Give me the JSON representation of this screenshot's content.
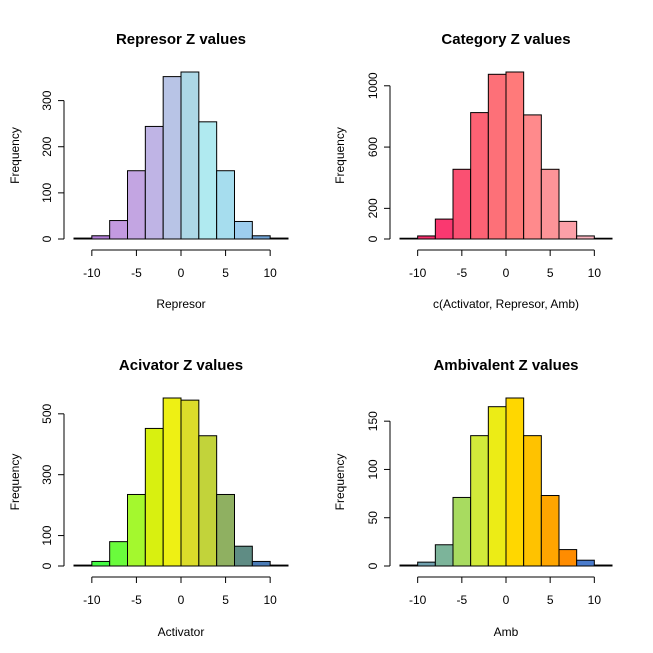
{
  "chart_data": [
    {
      "type": "bar",
      "title": "Represor Z values",
      "xlabel": "Represor",
      "ylabel": "Frequency",
      "bin_edges": [
        -12,
        -10,
        -8,
        -6,
        -4,
        -2,
        0,
        2,
        4,
        6,
        8,
        10,
        12
      ],
      "values": [
        2,
        7,
        40,
        148,
        244,
        352,
        362,
        254,
        148,
        38,
        7,
        2
      ],
      "bar_colors": [
        "#9932CC",
        "#B37FD9",
        "#C39AE0",
        "#C3A5E2",
        "#BFB4E5",
        "#B8C4E6",
        "#ADD8E6",
        "#B0EAF0",
        "#A6DDEE",
        "#9DCDEE",
        "#6FA3D6",
        "#5A8DC6"
      ],
      "xticks": [
        -10,
        -5,
        0,
        5,
        10
      ],
      "yticks": [
        0,
        100,
        200,
        300
      ],
      "xlim": [
        -12,
        12
      ],
      "ylim": [
        0,
        362
      ]
    },
    {
      "type": "bar",
      "title": "Category Z values",
      "xlabel": "c(Activator, Represor, Amb)",
      "ylabel": "Frequency",
      "bin_edges": [
        -12,
        -10,
        -8,
        -6,
        -4,
        -2,
        0,
        2,
        4,
        6,
        8,
        10,
        12
      ],
      "values": [
        5,
        20,
        130,
        455,
        825,
        1075,
        1090,
        810,
        455,
        115,
        20,
        5
      ],
      "bar_colors": [
        "#F0246E",
        "#F72E6C",
        "#FA3870",
        "#FA5072",
        "#FC6274",
        "#FD7078",
        "#FF7A7A",
        "#FF8A8C",
        "#FD9498",
        "#FCA0A8",
        "#FCB4C0",
        "#FDC4D0"
      ],
      "xticks": [
        -10,
        -5,
        0,
        5,
        10
      ],
      "yticks": [
        0,
        200,
        600,
        1000
      ],
      "xlim": [
        -12,
        12
      ],
      "ylim": [
        0,
        1090
      ]
    },
    {
      "type": "bar",
      "title": "Acivator Z values",
      "xlabel": "Activator",
      "ylabel": "Frequency",
      "bin_edges": [
        -12,
        -10,
        -8,
        -6,
        -4,
        -2,
        0,
        2,
        4,
        6,
        8,
        10,
        12
      ],
      "values": [
        3,
        15,
        80,
        235,
        452,
        552,
        545,
        428,
        235,
        65,
        15,
        3
      ],
      "bar_colors": [
        "#2FF82F",
        "#43FB43",
        "#6AFC3C",
        "#A4F82E",
        "#D8F010",
        "#EEF014",
        "#DCDC2A",
        "#C2D33A",
        "#8FB061",
        "#5F8C84",
        "#4A7BB6",
        "#3F6EA8"
      ],
      "xticks": [
        -10,
        -5,
        0,
        5,
        10
      ],
      "yticks": [
        0,
        100,
        300,
        500
      ],
      "xlim": [
        -12,
        12
      ],
      "ylim": [
        0,
        552
      ]
    },
    {
      "type": "bar",
      "title": "Ambivalent Z values",
      "xlabel": "Amb",
      "ylabel": "Frequency",
      "bin_edges": [
        -12,
        -10,
        -8,
        -6,
        -4,
        -2,
        0,
        2,
        4,
        6,
        8,
        10,
        12
      ],
      "values": [
        1,
        4,
        22,
        71,
        135,
        165,
        174,
        135,
        73,
        17,
        6,
        1
      ],
      "bar_colors": [
        "#5A8DB2",
        "#6FA0AE",
        "#7CB49A",
        "#A8DB60",
        "#D2EA3A",
        "#ECEC16",
        "#FFD700",
        "#FFC200",
        "#FFA500",
        "#FF8C00",
        "#4A7BCC",
        "#3F6EB8"
      ],
      "xticks": [
        -10,
        -5,
        0,
        5,
        10
      ],
      "yticks": [
        0,
        50,
        100,
        150
      ],
      "xlim": [
        -12,
        12
      ],
      "ylim": [
        0,
        174
      ]
    }
  ]
}
